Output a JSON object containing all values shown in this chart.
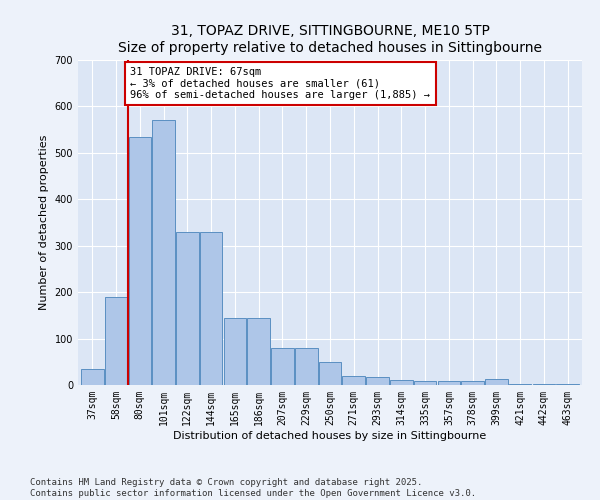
{
  "title1": "31, TOPAZ DRIVE, SITTINGBOURNE, ME10 5TP",
  "title2": "Size of property relative to detached houses in Sittingbourne",
  "xlabel": "Distribution of detached houses by size in Sittingbourne",
  "ylabel": "Number of detached properties",
  "categories": [
    "37sqm",
    "58sqm",
    "80sqm",
    "101sqm",
    "122sqm",
    "144sqm",
    "165sqm",
    "186sqm",
    "207sqm",
    "229sqm",
    "250sqm",
    "271sqm",
    "293sqm",
    "314sqm",
    "335sqm",
    "357sqm",
    "378sqm",
    "399sqm",
    "421sqm",
    "442sqm",
    "463sqm"
  ],
  "values": [
    35,
    190,
    535,
    570,
    330,
    330,
    145,
    145,
    80,
    80,
    50,
    20,
    17,
    10,
    8,
    8,
    8,
    12,
    2,
    2,
    2
  ],
  "bar_color": "#aec6e8",
  "bar_edgecolor": "#5a8fc2",
  "bg_color": "#dce6f5",
  "fig_bg_color": "#edf2fa",
  "annotation_text": "31 TOPAZ DRIVE: 67sqm\n← 3% of detached houses are smaller (61)\n96% of semi-detached houses are larger (1,885) →",
  "annotation_box_facecolor": "#ffffff",
  "annotation_box_edgecolor": "#cc0000",
  "vline_x": 1.5,
  "vline_color": "#cc0000",
  "ylim": [
    0,
    700
  ],
  "yticks": [
    0,
    100,
    200,
    300,
    400,
    500,
    600,
    700
  ],
  "footer1": "Contains HM Land Registry data © Crown copyright and database right 2025.",
  "footer2": "Contains public sector information licensed under the Open Government Licence v3.0.",
  "title_fontsize": 10,
  "axis_label_fontsize": 8,
  "tick_fontsize": 7,
  "annotation_fontsize": 7.5,
  "footer_fontsize": 6.5
}
